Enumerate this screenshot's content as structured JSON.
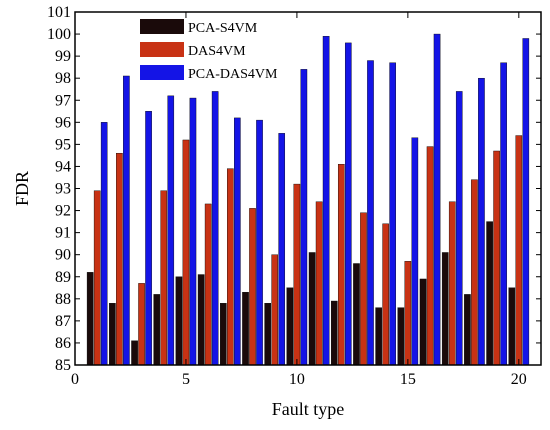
{
  "chart_data": {
    "type": "bar",
    "xlabel": "Fault type",
    "ylabel": "FDR",
    "xlim": [
      0,
      21
    ],
    "ylim": [
      85,
      101
    ],
    "x_ticks": [
      0,
      5,
      10,
      15,
      20
    ],
    "y_ticks": [
      85,
      86,
      87,
      88,
      89,
      90,
      91,
      92,
      93,
      94,
      95,
      96,
      97,
      98,
      99,
      100,
      101
    ],
    "categories": [
      1,
      2,
      3,
      4,
      5,
      6,
      7,
      8,
      9,
      10,
      11,
      12,
      13,
      14,
      15,
      16,
      17,
      18,
      19,
      20
    ],
    "legend_position": "top-left",
    "series": [
      {
        "name": "PCA-S4VM",
        "color": "#1a0a0a",
        "values": [
          89.2,
          87.8,
          86.1,
          88.2,
          89.0,
          89.1,
          87.8,
          88.3,
          87.8,
          88.5,
          90.1,
          87.9,
          89.6,
          87.6,
          87.6,
          88.9,
          90.1,
          88.2,
          91.5,
          88.5
        ]
      },
      {
        "name": "DAS4VM",
        "color": "#c83214",
        "values": [
          92.9,
          94.6,
          88.7,
          92.9,
          95.2,
          92.3,
          93.9,
          92.1,
          90.0,
          93.2,
          92.4,
          94.1,
          91.9,
          91.4,
          89.7,
          94.9,
          92.4,
          93.4,
          94.7,
          95.4
        ]
      },
      {
        "name": "PCA-DAS4VM",
        "color": "#1414e6",
        "values": [
          96.0,
          98.1,
          96.5,
          97.2,
          97.1,
          97.4,
          96.2,
          96.1,
          95.5,
          98.4,
          99.9,
          99.6,
          98.8,
          98.7,
          95.3,
          100.0,
          97.4,
          98.0,
          98.7,
          99.8
        ]
      }
    ]
  }
}
